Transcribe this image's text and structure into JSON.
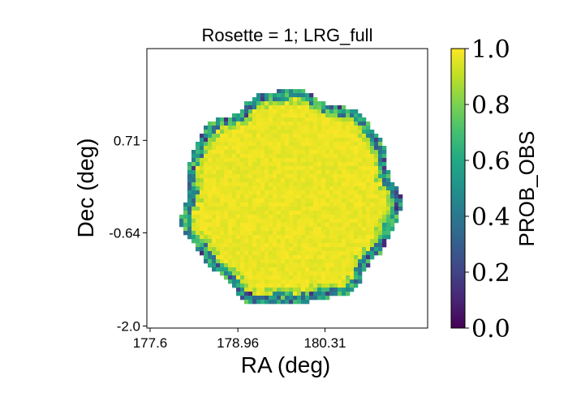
{
  "chart_data": {
    "type": "heatmap",
    "title": "Rosette = 1; LRG_full",
    "xlabel": "RA (deg)",
    "ylabel": "Dec (deg)",
    "xlim": [
      177.55,
      181.9
    ],
    "ylim": [
      -2.03,
      2.05
    ],
    "x_ticks": [
      177.6,
      178.96,
      180.31
    ],
    "x_tick_labels": [
      "177.6",
      "178.96",
      "180.31"
    ],
    "y_ticks": [
      -2.0,
      -0.64,
      0.71
    ],
    "y_tick_labels": [
      "-2.0",
      "-0.64",
      "0.71"
    ],
    "colorbar": {
      "label": "PROB_OBS",
      "colormap": "viridis",
      "range": [
        0.0,
        1.0
      ],
      "ticks": [
        0.0,
        0.2,
        0.4,
        0.6,
        0.8,
        1.0
      ],
      "tick_labels": [
        "0.0",
        "0.2",
        "0.4",
        "0.6",
        "0.8",
        "1.0"
      ]
    },
    "grid": false,
    "region": {
      "shape": "roughly circular rosette footprint",
      "center": [
        179.77,
        -0.14
      ],
      "radius_deg": 1.62,
      "interior_value": 0.97,
      "edge_value_range": [
        0.3,
        0.8
      ]
    }
  },
  "colors": {
    "viridis_dark": "#440154",
    "viridis_mid": "#21918c",
    "viridis_yellow": "#fde725"
  }
}
